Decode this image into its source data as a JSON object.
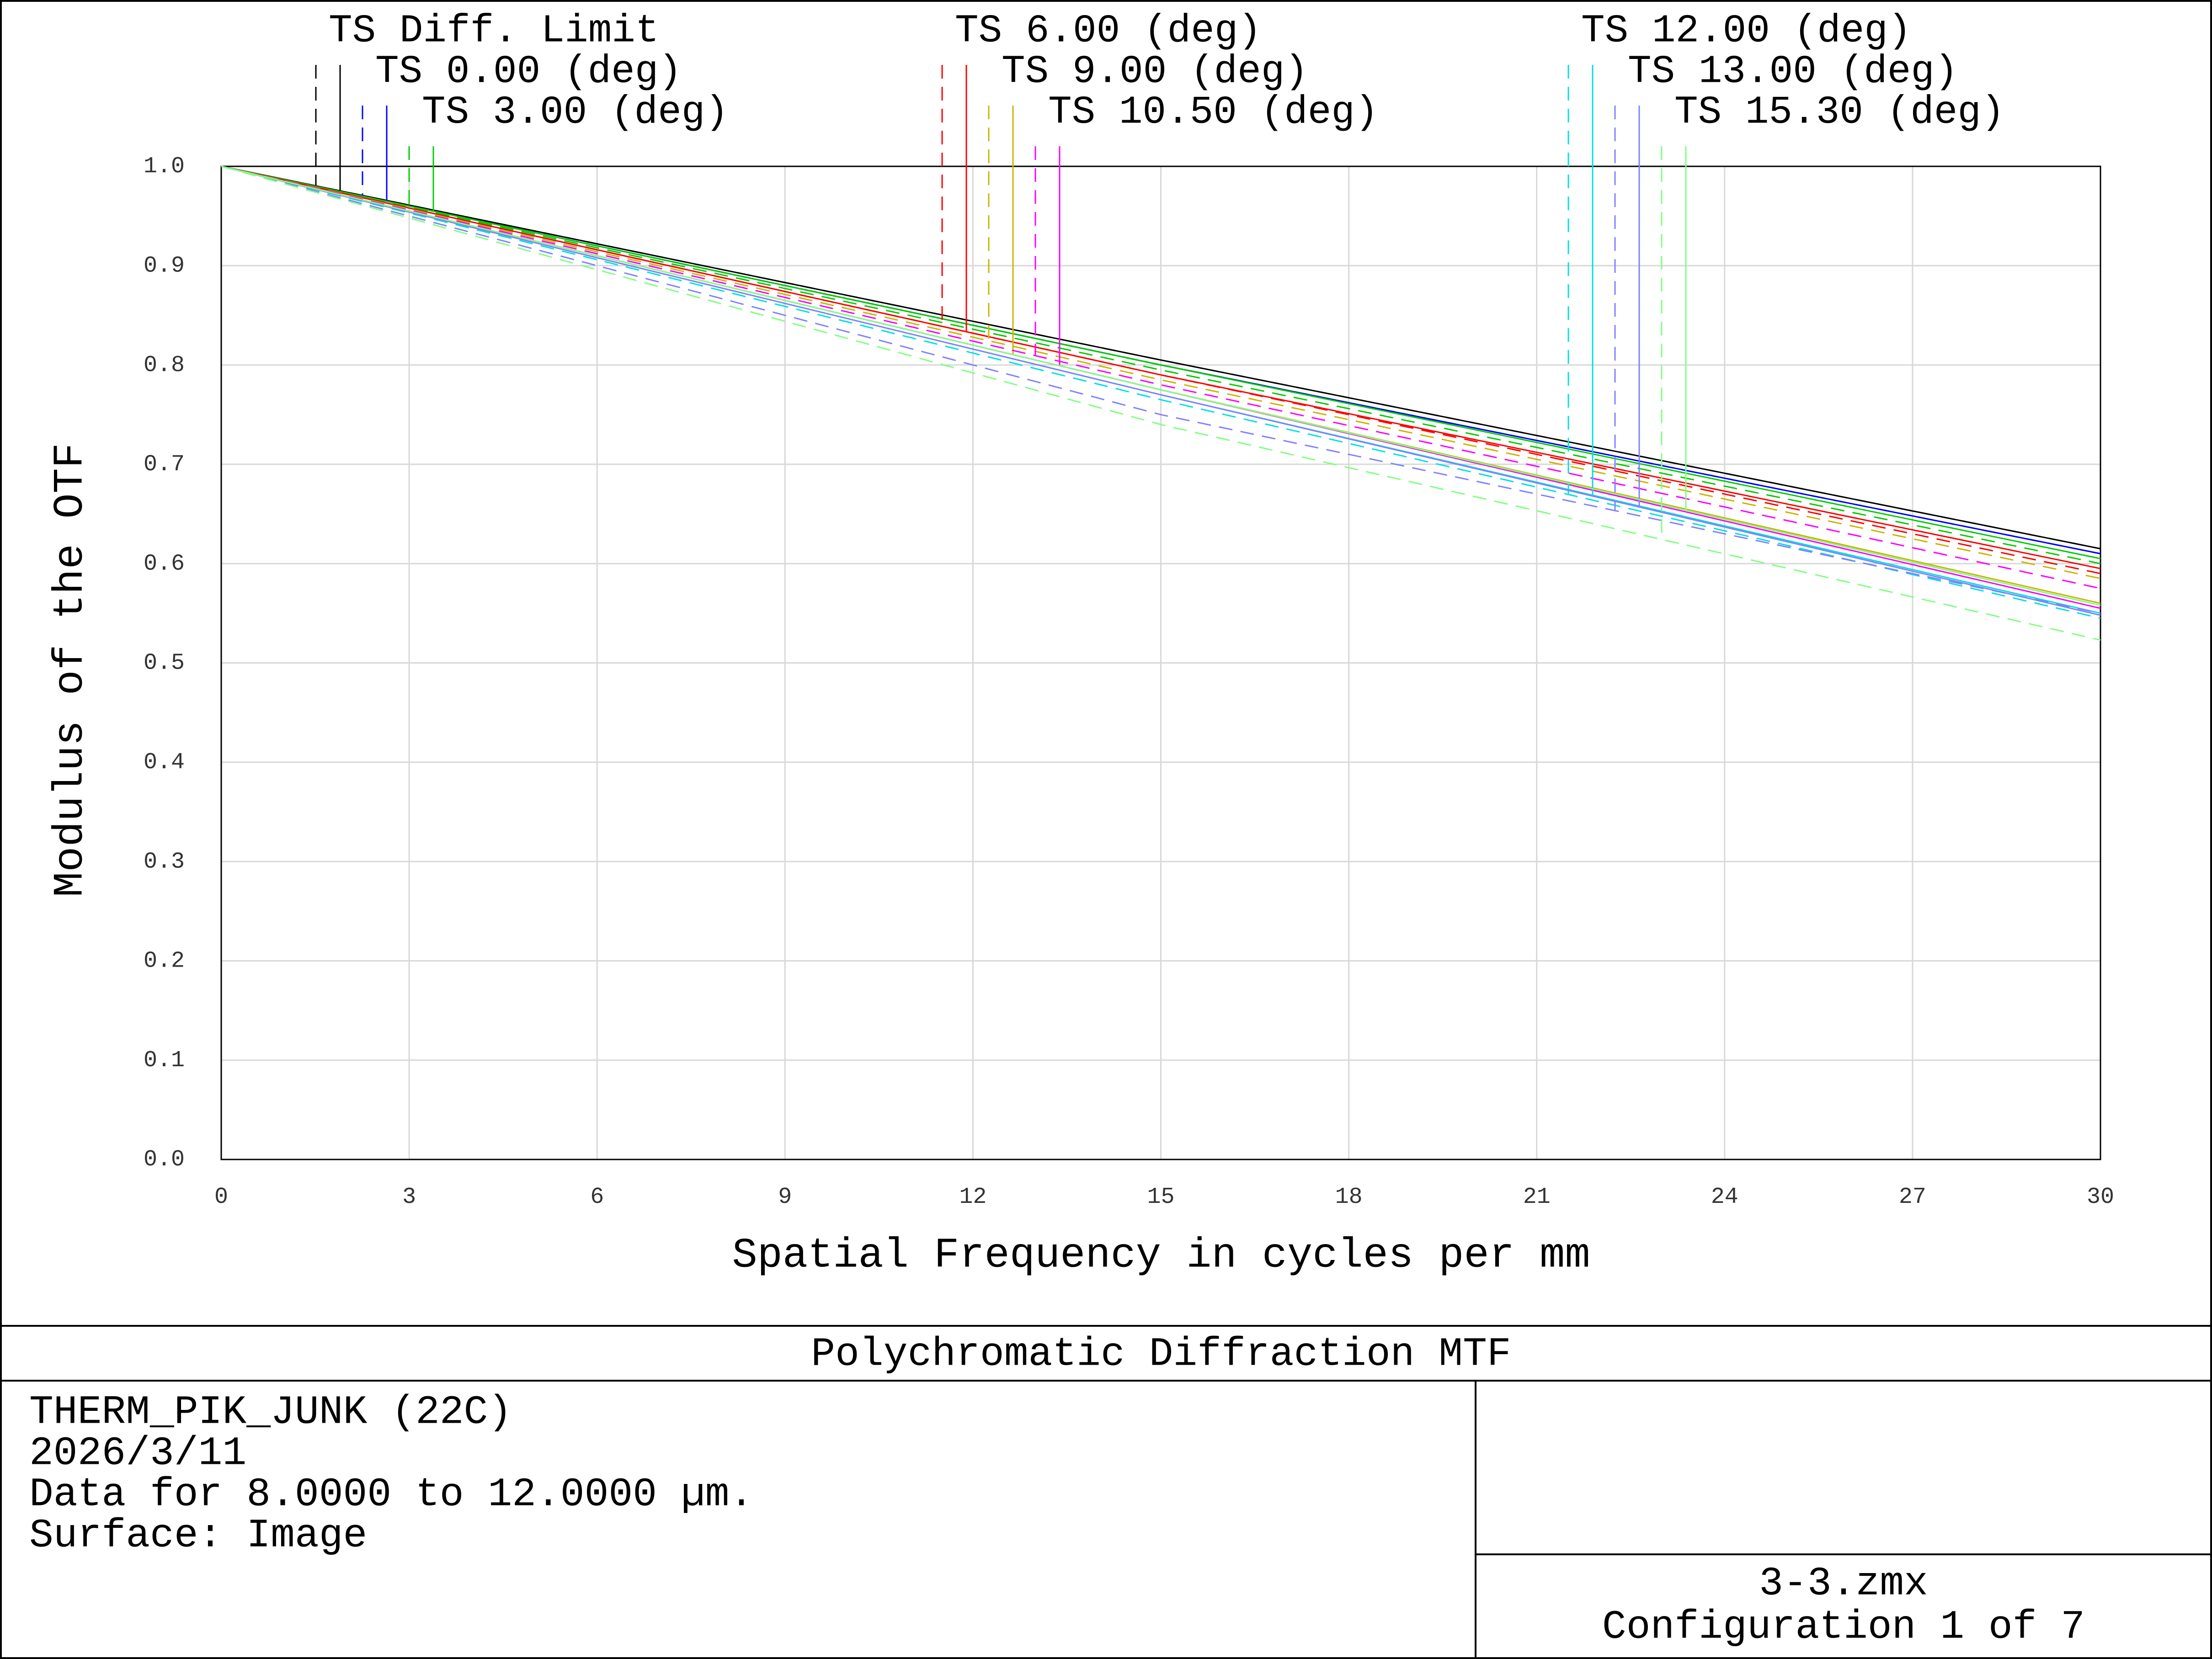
{
  "chart_data": {
    "type": "line",
    "xlabel": "Spatial Frequency in cycles per mm",
    "ylabel": "Modulus of the OTF",
    "x": [
      0,
      15,
      30
    ],
    "xlim": [
      0,
      30
    ],
    "xticks": [
      0,
      3,
      6,
      9,
      12,
      15,
      18,
      21,
      24,
      27,
      30
    ],
    "ylim": [
      0,
      1
    ],
    "yticks": [
      {
        "value": 0,
        "label": "0.0"
      },
      0.1,
      0.2,
      0.3,
      0.4,
      0.5,
      0.6,
      0.7,
      0.8,
      0.9,
      {
        "value": 1,
        "label": "1.0"
      }
    ],
    "grid": true,
    "series": [
      {
        "name": "TS Diff. Limit",
        "color": "#000000",
        "values": [
          1,
          0.805,
          0.615
        ],
        "s_values": [
          1,
          0.805,
          0.615
        ]
      },
      {
        "name": "TS 0.00 (deg)",
        "color": "#0000ff",
        "values": [
          1,
          0.8,
          0.61
        ],
        "s_values": [
          1,
          0.8,
          0.61
        ]
      },
      {
        "name": "TS 3.00 (deg)",
        "color": "#00cc00",
        "values": [
          1,
          0.8,
          0.605
        ],
        "s_values": [
          1,
          0.795,
          0.6
        ]
      },
      {
        "name": "TS 6.00 (deg)",
        "color": "#ff0000",
        "values": [
          1,
          0.79,
          0.595
        ],
        "s_values": [
          1,
          0.79,
          0.59
        ]
      },
      {
        "name": "TS 9.00 (deg)",
        "color": "#c8b400",
        "values": [
          1,
          0.775,
          0.56
        ],
        "s_values": [
          1,
          0.785,
          0.585
        ]
      },
      {
        "name": "TS 10.50 (deg)",
        "color": "#ff00ff",
        "values": [
          1,
          0.775,
          0.555
        ],
        "s_values": [
          1,
          0.78,
          0.575
        ]
      },
      {
        "name": "TS 12.00 (deg)",
        "color": "#00e0e0",
        "values": [
          1,
          0.77,
          0.55
        ],
        "s_values": [
          1,
          0.765,
          0.545
        ]
      },
      {
        "name": "TS 13.00 (deg)",
        "color": "#8080ff",
        "values": [
          1,
          0.77,
          0.548
        ],
        "s_values": [
          1,
          0.75,
          0.55
        ]
      },
      {
        "name": "TS 15.30 (deg)",
        "color": "#80ff80",
        "values": [
          1,
          0.775,
          0.558
        ],
        "s_values": [
          1,
          0.74,
          0.523
        ]
      }
    ]
  },
  "footer": {
    "title": "Polychromatic Diffraction MTF",
    "info": [
      "THERM_PIK_JUNK (22C)",
      "2026/3/11",
      "Data for 8.0000 to 12.0000 µm.",
      "Surface: Image"
    ],
    "file": "3-3.zmx",
    "configuration": "Configuration 1 of 7"
  }
}
